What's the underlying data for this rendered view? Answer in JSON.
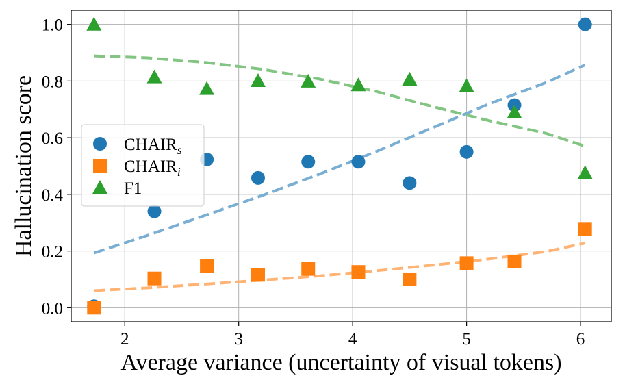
{
  "chart_data": {
    "type": "scatter",
    "xlabel": "Average variance (uncertainty of visual tokens)",
    "ylabel": "Hallucination score",
    "xlim": [
      1.53,
      6.27
    ],
    "ylim": [
      -0.05,
      1.05
    ],
    "xticks": [
      2,
      3,
      4,
      5,
      6
    ],
    "yticks": [
      0.0,
      0.2,
      0.4,
      0.6,
      0.8,
      1.0
    ],
    "xtick_labels": [
      "2",
      "3",
      "4",
      "5",
      "6"
    ],
    "ytick_labels": [
      "0.0",
      "0.2",
      "0.4",
      "0.6",
      "0.8",
      "1.0"
    ],
    "grid": true,
    "legend_position": "center-left",
    "series": [
      {
        "name": "CHAIR_s",
        "legend_main": "CHAIR",
        "legend_sub": "s",
        "color": "#1f77b4",
        "trend_color": "#7aaed3",
        "marker": "circle",
        "x": [
          1.73,
          2.26,
          2.72,
          3.17,
          3.61,
          4.05,
          4.5,
          5.0,
          5.42,
          6.04
        ],
        "y": [
          0.005,
          0.34,
          0.523,
          0.458,
          0.515,
          0.515,
          0.44,
          0.55,
          0.715,
          1.0
        ],
        "trend": [
          [
            1.73,
            0.193
          ],
          [
            2.2,
            0.255
          ],
          [
            2.7,
            0.325
          ],
          [
            3.2,
            0.395
          ],
          [
            3.7,
            0.47
          ],
          [
            4.2,
            0.55
          ],
          [
            4.7,
            0.635
          ],
          [
            5.2,
            0.72
          ],
          [
            5.7,
            0.795
          ],
          [
            6.04,
            0.857
          ]
        ]
      },
      {
        "name": "CHAIR_i",
        "legend_main": "CHAIR",
        "legend_sub": "i",
        "color": "#ff7f0e",
        "trend_color": "#ffb375",
        "marker": "square",
        "x": [
          1.73,
          2.26,
          2.72,
          3.17,
          3.61,
          4.05,
          4.5,
          5.0,
          5.42,
          6.04
        ],
        "y": [
          0.0,
          0.103,
          0.147,
          0.116,
          0.137,
          0.126,
          0.1,
          0.157,
          0.163,
          0.278
        ],
        "trend": [
          [
            1.73,
            0.06
          ],
          [
            2.2,
            0.07
          ],
          [
            2.7,
            0.083
          ],
          [
            3.2,
            0.097
          ],
          [
            3.7,
            0.112
          ],
          [
            4.2,
            0.13
          ],
          [
            4.7,
            0.15
          ],
          [
            5.2,
            0.172
          ],
          [
            5.7,
            0.198
          ],
          [
            6.04,
            0.228
          ]
        ]
      },
      {
        "name": "F1",
        "legend_main": "F1",
        "legend_sub": "",
        "color": "#2ca02c",
        "trend_color": "#82c582",
        "marker": "triangle",
        "x": [
          1.73,
          2.26,
          2.72,
          3.17,
          3.61,
          4.05,
          4.5,
          5.0,
          5.42,
          6.04
        ],
        "y": [
          1.0,
          0.814,
          0.773,
          0.801,
          0.799,
          0.786,
          0.806,
          0.783,
          0.69,
          0.476
        ],
        "trend": [
          [
            1.73,
            0.889
          ],
          [
            2.2,
            0.882
          ],
          [
            2.7,
            0.866
          ],
          [
            3.2,
            0.842
          ],
          [
            3.7,
            0.808
          ],
          [
            4.2,
            0.764
          ],
          [
            4.7,
            0.71
          ],
          [
            5.2,
            0.66
          ],
          [
            5.7,
            0.615
          ],
          [
            6.04,
            0.57
          ]
        ]
      }
    ]
  }
}
